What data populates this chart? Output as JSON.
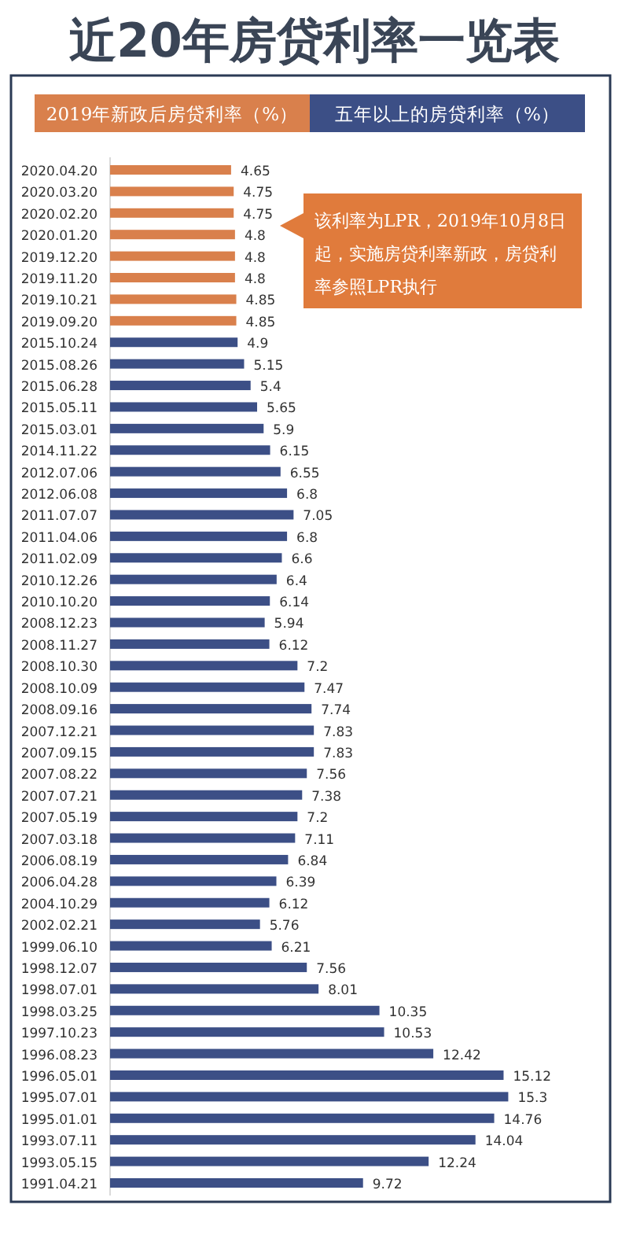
{
  "chart_data": {
    "type": "bar",
    "orientation": "horizontal",
    "title": "近20年房贷利率一览表",
    "categories": [
      "2020.04.20",
      "2020.03.20",
      "2020.02.20",
      "2020.01.20",
      "2019.12.20",
      "2019.11.20",
      "2019.10.21",
      "2019.09.20",
      "2015.10.24",
      "2015.08.26",
      "2015.06.28",
      "2015.05.11",
      "2015.03.01",
      "2014.11.22",
      "2012.07.06",
      "2012.06.08",
      "2011.07.07",
      "2011.04.06",
      "2011.02.09",
      "2010.12.26",
      "2010.10.20",
      "2008.12.23",
      "2008.11.27",
      "2008.10.30",
      "2008.10.09",
      "2008.09.16",
      "2007.12.21",
      "2007.09.15",
      "2007.08.22",
      "2007.07.21",
      "2007.05.19",
      "2007.03.18",
      "2006.08.19",
      "2006.04.28",
      "2004.10.29",
      "2002.02.21",
      "1999.06.10",
      "1998.12.07",
      "1998.07.01",
      "1998.03.25",
      "1997.10.23",
      "1996.08.23",
      "1996.05.01",
      "1995.07.01",
      "1995.01.01",
      "1993.07.11",
      "1993.05.15",
      "1991.04.21"
    ],
    "series": [
      {
        "name": "2019年新政后房贷利率（%）",
        "color": "#d9804c",
        "values": [
          4.65,
          4.75,
          4.75,
          4.8,
          4.8,
          4.8,
          4.85,
          4.85,
          null,
          null,
          null,
          null,
          null,
          null,
          null,
          null,
          null,
          null,
          null,
          null,
          null,
          null,
          null,
          null,
          null,
          null,
          null,
          null,
          null,
          null,
          null,
          null,
          null,
          null,
          null,
          null,
          null,
          null,
          null,
          null,
          null,
          null,
          null,
          null,
          null,
          null,
          null,
          null
        ]
      },
      {
        "name": "五年以上的房贷利率（%）",
        "color": "#3c4f86",
        "values": [
          null,
          null,
          null,
          null,
          null,
          null,
          null,
          null,
          4.9,
          5.15,
          5.4,
          5.65,
          5.9,
          6.15,
          6.55,
          6.8,
          7.05,
          6.8,
          6.6,
          6.4,
          6.14,
          5.94,
          6.12,
          7.2,
          7.47,
          7.74,
          7.83,
          7.83,
          7.56,
          7.38,
          7.2,
          7.11,
          6.84,
          6.39,
          6.12,
          5.76,
          6.21,
          7.56,
          8.01,
          10.35,
          10.53,
          12.42,
          15.12,
          15.3,
          14.76,
          14.04,
          12.24,
          9.72
        ]
      }
    ],
    "data_labels": true,
    "legend": "top",
    "annotations": [
      "该利率为LPR，2019年10月8日起，实施房贷利率新政，房贷利率参照LPR执行"
    ]
  }
}
